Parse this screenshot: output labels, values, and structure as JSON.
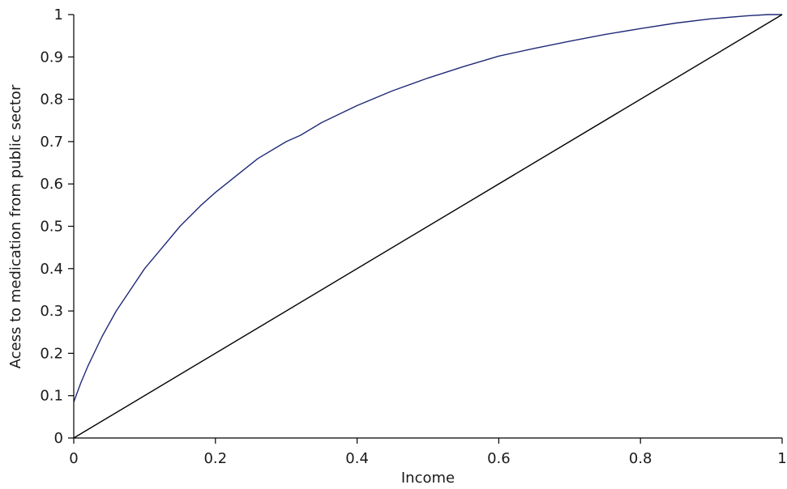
{
  "chart_data": {
    "type": "line",
    "title": "",
    "xlabel": "Income",
    "ylabel": "Acess to medication from public sector",
    "xlim": [
      0,
      1
    ],
    "ylim": [
      0,
      1
    ],
    "x_ticks": [
      "0",
      "0.2",
      "0.4",
      "0.6",
      "0.8",
      "1"
    ],
    "y_ticks": [
      "0",
      "0.1",
      "0.2",
      "0.3",
      "0.4",
      "0.5",
      "0.6",
      "0.7",
      "0.8",
      "0.9",
      "1"
    ],
    "grid": false,
    "legend": "none",
    "series": [
      {
        "color": "#1f2a78",
        "x": [
          0,
          0.01,
          0.02,
          0.04,
          0.06,
          0.08,
          0.1,
          0.12,
          0.15,
          0.18,
          0.2,
          0.23,
          0.26,
          0.3,
          0.32,
          0.35,
          0.4,
          0.45,
          0.5,
          0.55,
          0.6,
          0.65,
          0.7,
          0.75,
          0.8,
          0.85,
          0.9,
          0.95,
          0.98,
          1.0
        ],
        "y": [
          0.085,
          0.13,
          0.17,
          0.24,
          0.3,
          0.35,
          0.4,
          0.44,
          0.5,
          0.55,
          0.58,
          0.62,
          0.66,
          0.7,
          0.715,
          0.745,
          0.785,
          0.82,
          0.85,
          0.877,
          0.902,
          0.92,
          0.937,
          0.953,
          0.967,
          0.98,
          0.99,
          0.997,
          1.0,
          1.0
        ]
      },
      {
        "color": "#000000",
        "x": [
          0,
          1
        ],
        "y": [
          0,
          1
        ]
      }
    ]
  }
}
